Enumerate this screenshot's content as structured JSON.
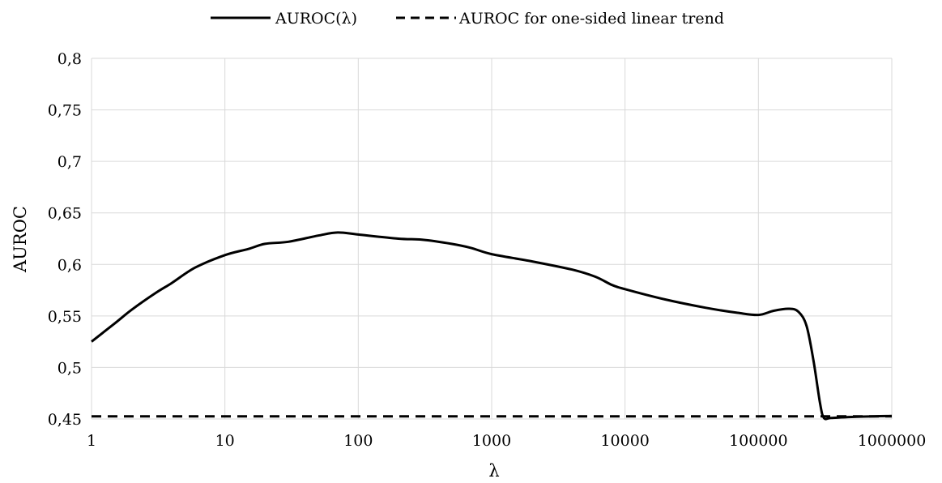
{
  "chart_data": {
    "type": "line",
    "x_scale": "log",
    "xlabel": "λ",
    "ylabel": "AUROC",
    "xlim": [
      1,
      1000000
    ],
    "ylim": [
      0.45,
      0.8
    ],
    "x_ticks": [
      "1",
      "10",
      "100",
      "1000",
      "10000",
      "100000",
      "1000000"
    ],
    "y_ticks": [
      "0,45",
      "0,5",
      "0,55",
      "0,6",
      "0,65",
      "0,7",
      "0,75",
      "0,8"
    ],
    "grid": true,
    "legend_position": "top-center",
    "series": [
      {
        "name": "AUROC(λ)",
        "style": "solid",
        "color": "#000000",
        "points": [
          [
            1,
            0.525
          ],
          [
            1.5,
            0.543
          ],
          [
            2,
            0.556
          ],
          [
            3,
            0.572
          ],
          [
            4,
            0.582
          ],
          [
            6,
            0.597
          ],
          [
            10,
            0.609
          ],
          [
            15,
            0.615
          ],
          [
            20,
            0.62
          ],
          [
            30,
            0.622
          ],
          [
            50,
            0.628
          ],
          [
            70,
            0.631
          ],
          [
            100,
            0.629
          ],
          [
            200,
            0.625
          ],
          [
            300,
            0.624
          ],
          [
            500,
            0.62
          ],
          [
            700,
            0.616
          ],
          [
            1000,
            0.61
          ],
          [
            2000,
            0.603
          ],
          [
            4000,
            0.595
          ],
          [
            6000,
            0.588
          ],
          [
            8000,
            0.58
          ],
          [
            10000,
            0.576
          ],
          [
            20000,
            0.566
          ],
          [
            40000,
            0.558
          ],
          [
            70000,
            0.553
          ],
          [
            100000,
            0.551
          ],
          [
            130000,
            0.555
          ],
          [
            170000,
            0.557
          ],
          [
            200000,
            0.554
          ],
          [
            230000,
            0.54
          ],
          [
            260000,
            0.505
          ],
          [
            290000,
            0.465
          ],
          [
            310000,
            0.451
          ],
          [
            350000,
            0.451
          ],
          [
            500000,
            0.452
          ],
          [
            1000000,
            0.453
          ]
        ]
      },
      {
        "name": "AUROC for one-sided linear trend",
        "style": "dashed",
        "color": "#000000",
        "points": [
          [
            1,
            0.4525
          ],
          [
            1000000,
            0.4525
          ]
        ]
      }
    ]
  }
}
